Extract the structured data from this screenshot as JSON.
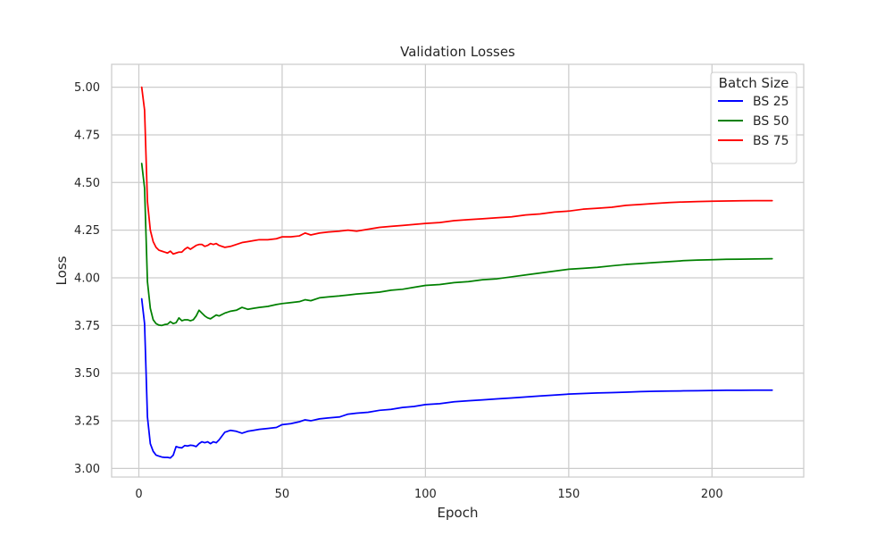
{
  "chart_data": {
    "type": "line",
    "title": "Validation Losses",
    "xlabel": "Epoch",
    "ylabel": "Loss",
    "xlim": [
      -9.5,
      232
    ],
    "ylim": [
      2.955,
      5.12
    ],
    "xticks": [
      0,
      50,
      100,
      150,
      200
    ],
    "yticks": [
      3.0,
      3.25,
      3.5,
      3.75,
      4.0,
      4.25,
      4.5,
      4.75,
      5.0
    ],
    "ytick_labels": [
      "3.00",
      "3.25",
      "3.50",
      "3.75",
      "4.00",
      "4.25",
      "4.50",
      "4.75",
      "5.00"
    ],
    "grid": true,
    "legend": {
      "title": "Batch Size",
      "placement": "top-right"
    },
    "series": [
      {
        "name": "BS 25",
        "color": "#0000ff",
        "points": [
          [
            1,
            3.89
          ],
          [
            2,
            3.76
          ],
          [
            3,
            3.27
          ],
          [
            4,
            3.13
          ],
          [
            5,
            3.09
          ],
          [
            6,
            3.07
          ],
          [
            7,
            3.065
          ],
          [
            8,
            3.06
          ],
          [
            9,
            3.058
          ],
          [
            10,
            3.058
          ],
          [
            11,
            3.055
          ],
          [
            12,
            3.07
          ],
          [
            13,
            3.115
          ],
          [
            14,
            3.11
          ],
          [
            15,
            3.108
          ],
          [
            16,
            3.12
          ],
          [
            17,
            3.118
          ],
          [
            18,
            3.122
          ],
          [
            19,
            3.12
          ],
          [
            20,
            3.115
          ],
          [
            21,
            3.13
          ],
          [
            22,
            3.14
          ],
          [
            23,
            3.135
          ],
          [
            24,
            3.14
          ],
          [
            25,
            3.13
          ],
          [
            26,
            3.14
          ],
          [
            27,
            3.135
          ],
          [
            28,
            3.15
          ],
          [
            30,
            3.19
          ],
          [
            32,
            3.2
          ],
          [
            34,
            3.195
          ],
          [
            36,
            3.185
          ],
          [
            38,
            3.195
          ],
          [
            40,
            3.2
          ],
          [
            42,
            3.205
          ],
          [
            45,
            3.21
          ],
          [
            48,
            3.215
          ],
          [
            50,
            3.23
          ],
          [
            53,
            3.235
          ],
          [
            56,
            3.245
          ],
          [
            58,
            3.255
          ],
          [
            60,
            3.25
          ],
          [
            63,
            3.26
          ],
          [
            66,
            3.265
          ],
          [
            70,
            3.27
          ],
          [
            73,
            3.285
          ],
          [
            76,
            3.29
          ],
          [
            80,
            3.295
          ],
          [
            84,
            3.305
          ],
          [
            88,
            3.31
          ],
          [
            92,
            3.32
          ],
          [
            96,
            3.325
          ],
          [
            100,
            3.335
          ],
          [
            105,
            3.34
          ],
          [
            110,
            3.35
          ],
          [
            115,
            3.355
          ],
          [
            120,
            3.36
          ],
          [
            125,
            3.365
          ],
          [
            130,
            3.37
          ],
          [
            135,
            3.375
          ],
          [
            140,
            3.38
          ],
          [
            145,
            3.385
          ],
          [
            150,
            3.39
          ],
          [
            155,
            3.393
          ],
          [
            160,
            3.396
          ],
          [
            165,
            3.398
          ],
          [
            170,
            3.4
          ],
          [
            175,
            3.403
          ],
          [
            180,
            3.405
          ],
          [
            185,
            3.406
          ],
          [
            190,
            3.407
          ],
          [
            195,
            3.408
          ],
          [
            200,
            3.409
          ],
          [
            205,
            3.41
          ],
          [
            210,
            3.41
          ],
          [
            215,
            3.411
          ],
          [
            221,
            3.411
          ]
        ]
      },
      {
        "name": "BS 50",
        "color": "#008000",
        "points": [
          [
            1,
            4.6
          ],
          [
            2,
            4.47
          ],
          [
            3,
            3.98
          ],
          [
            4,
            3.84
          ],
          [
            5,
            3.78
          ],
          [
            6,
            3.76
          ],
          [
            7,
            3.752
          ],
          [
            8,
            3.75
          ],
          [
            9,
            3.755
          ],
          [
            10,
            3.757
          ],
          [
            11,
            3.77
          ],
          [
            12,
            3.76
          ],
          [
            13,
            3.765
          ],
          [
            14,
            3.79
          ],
          [
            15,
            3.775
          ],
          [
            16,
            3.78
          ],
          [
            17,
            3.78
          ],
          [
            18,
            3.775
          ],
          [
            19,
            3.78
          ],
          [
            20,
            3.8
          ],
          [
            21,
            3.83
          ],
          [
            22,
            3.815
          ],
          [
            23,
            3.8
          ],
          [
            24,
            3.79
          ],
          [
            25,
            3.785
          ],
          [
            26,
            3.795
          ],
          [
            27,
            3.805
          ],
          [
            28,
            3.8
          ],
          [
            30,
            3.815
          ],
          [
            32,
            3.825
          ],
          [
            34,
            3.83
          ],
          [
            36,
            3.845
          ],
          [
            38,
            3.835
          ],
          [
            40,
            3.84
          ],
          [
            42,
            3.845
          ],
          [
            45,
            3.85
          ],
          [
            48,
            3.86
          ],
          [
            50,
            3.865
          ],
          [
            53,
            3.87
          ],
          [
            56,
            3.875
          ],
          [
            58,
            3.885
          ],
          [
            60,
            3.88
          ],
          [
            63,
            3.895
          ],
          [
            66,
            3.9
          ],
          [
            70,
            3.905
          ],
          [
            73,
            3.91
          ],
          [
            76,
            3.915
          ],
          [
            80,
            3.92
          ],
          [
            84,
            3.925
          ],
          [
            88,
            3.935
          ],
          [
            92,
            3.94
          ],
          [
            96,
            3.95
          ],
          [
            100,
            3.96
          ],
          [
            105,
            3.965
          ],
          [
            110,
            3.975
          ],
          [
            115,
            3.98
          ],
          [
            120,
            3.99
          ],
          [
            125,
            3.995
          ],
          [
            130,
            4.005
          ],
          [
            135,
            4.015
          ],
          [
            140,
            4.025
          ],
          [
            145,
            4.035
          ],
          [
            150,
            4.045
          ],
          [
            155,
            4.05
          ],
          [
            160,
            4.055
          ],
          [
            165,
            4.063
          ],
          [
            170,
            4.07
          ],
          [
            175,
            4.075
          ],
          [
            180,
            4.08
          ],
          [
            185,
            4.085
          ],
          [
            190,
            4.09
          ],
          [
            195,
            4.093
          ],
          [
            200,
            4.095
          ],
          [
            205,
            4.097
          ],
          [
            210,
            4.098
          ],
          [
            215,
            4.099
          ],
          [
            221,
            4.1
          ]
        ]
      },
      {
        "name": "BS 75",
        "color": "#ff0000",
        "points": [
          [
            1,
            5.0
          ],
          [
            2,
            4.88
          ],
          [
            3,
            4.4
          ],
          [
            4,
            4.25
          ],
          [
            5,
            4.19
          ],
          [
            6,
            4.16
          ],
          [
            7,
            4.145
          ],
          [
            8,
            4.14
          ],
          [
            9,
            4.135
          ],
          [
            10,
            4.13
          ],
          [
            11,
            4.14
          ],
          [
            12,
            4.125
          ],
          [
            13,
            4.13
          ],
          [
            14,
            4.135
          ],
          [
            15,
            4.135
          ],
          [
            16,
            4.15
          ],
          [
            17,
            4.16
          ],
          [
            18,
            4.15
          ],
          [
            19,
            4.16
          ],
          [
            20,
            4.17
          ],
          [
            21,
            4.175
          ],
          [
            22,
            4.175
          ],
          [
            23,
            4.165
          ],
          [
            24,
            4.17
          ],
          [
            25,
            4.18
          ],
          [
            26,
            4.175
          ],
          [
            27,
            4.18
          ],
          [
            28,
            4.17
          ],
          [
            30,
            4.16
          ],
          [
            32,
            4.165
          ],
          [
            34,
            4.175
          ],
          [
            36,
            4.185
          ],
          [
            38,
            4.19
          ],
          [
            40,
            4.195
          ],
          [
            42,
            4.2
          ],
          [
            45,
            4.2
          ],
          [
            48,
            4.205
          ],
          [
            50,
            4.215
          ],
          [
            53,
            4.215
          ],
          [
            56,
            4.22
          ],
          [
            58,
            4.235
          ],
          [
            60,
            4.225
          ],
          [
            63,
            4.235
          ],
          [
            66,
            4.24
          ],
          [
            70,
            4.245
          ],
          [
            73,
            4.25
          ],
          [
            76,
            4.245
          ],
          [
            80,
            4.255
          ],
          [
            84,
            4.265
          ],
          [
            88,
            4.27
          ],
          [
            92,
            4.275
          ],
          [
            96,
            4.28
          ],
          [
            100,
            4.285
          ],
          [
            105,
            4.29
          ],
          [
            110,
            4.3
          ],
          [
            115,
            4.305
          ],
          [
            120,
            4.31
          ],
          [
            125,
            4.315
          ],
          [
            130,
            4.32
          ],
          [
            135,
            4.33
          ],
          [
            140,
            4.335
          ],
          [
            145,
            4.345
          ],
          [
            150,
            4.35
          ],
          [
            155,
            4.36
          ],
          [
            160,
            4.365
          ],
          [
            165,
            4.37
          ],
          [
            170,
            4.38
          ],
          [
            175,
            4.385
          ],
          [
            180,
            4.39
          ],
          [
            185,
            4.395
          ],
          [
            190,
            4.398
          ],
          [
            195,
            4.4
          ],
          [
            200,
            4.402
          ],
          [
            205,
            4.403
          ],
          [
            210,
            4.404
          ],
          [
            215,
            4.405
          ],
          [
            221,
            4.405
          ]
        ]
      }
    ]
  }
}
